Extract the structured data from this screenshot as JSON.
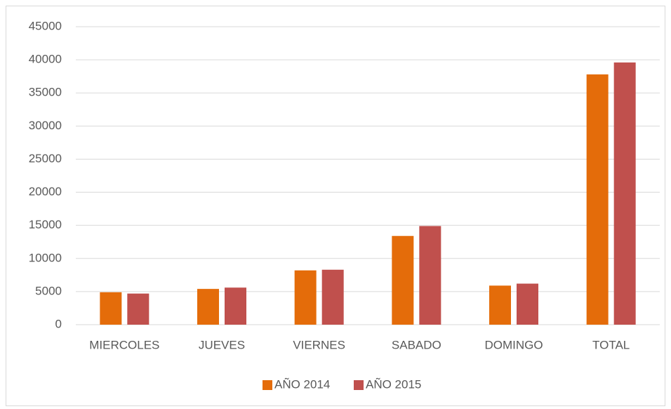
{
  "chart_data": {
    "type": "bar",
    "categories": [
      "MIERCOLES",
      "JUEVES",
      "VIERNES",
      "SABADO",
      "DOMINGO",
      "TOTAL"
    ],
    "series": [
      {
        "name": "AÑO 2014",
        "color": "#e46c0a",
        "values": [
          4900,
          5400,
          8200,
          13400,
          5900,
          37800
        ]
      },
      {
        "name": "AÑO 2015",
        "color": "#c0504d",
        "values": [
          4700,
          5600,
          8300,
          14900,
          6200,
          39600
        ]
      }
    ],
    "ylim": [
      0,
      45000
    ],
    "yticks": [
      0,
      5000,
      10000,
      15000,
      20000,
      25000,
      30000,
      35000,
      40000,
      45000
    ],
    "grid": true,
    "legend": "bottom"
  }
}
